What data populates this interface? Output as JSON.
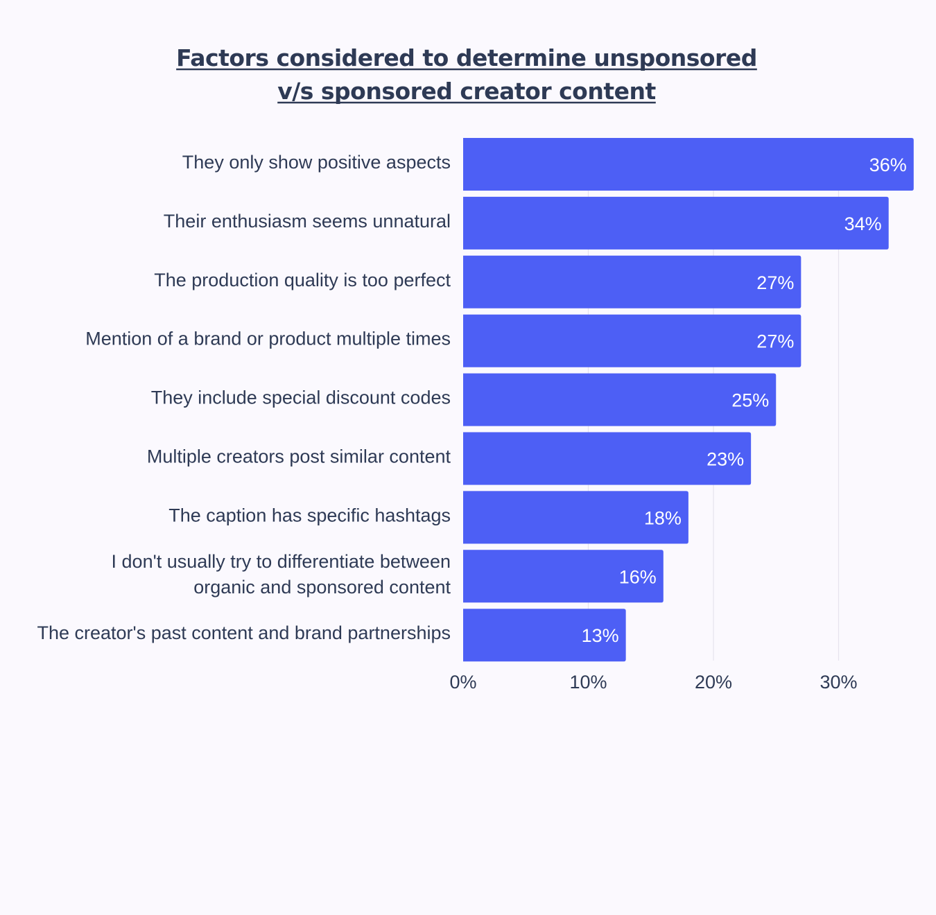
{
  "chart_data": {
    "type": "bar",
    "orientation": "horizontal",
    "title_lines": [
      "Factors considered to determine unsponsored",
      "v/s sponsored creator content"
    ],
    "categories": [
      [
        "They only show positive aspects"
      ],
      [
        "Their enthusiasm seems unnatural"
      ],
      [
        "The production quality is too perfect"
      ],
      [
        "Mention of a brand or product multiple times"
      ],
      [
        "They include special discount codes"
      ],
      [
        "Multiple creators post similar content"
      ],
      [
        "The caption has specific hashtags"
      ],
      [
        "I don't usually try to differentiate between",
        "organic and sponsored content"
      ],
      [
        "The creator's past content and brand partnerships"
      ]
    ],
    "values": [
      36,
      34,
      27,
      27,
      25,
      23,
      18,
      16,
      13
    ],
    "value_labels": [
      "36%",
      "34%",
      "27%",
      "27%",
      "25%",
      "23%",
      "18%",
      "16%",
      "13%"
    ],
    "x_ticks": [
      0,
      10,
      20,
      30
    ],
    "x_tick_labels": [
      "0%",
      "10%",
      "20%",
      "30%"
    ],
    "xlim": [
      0,
      36
    ],
    "xlabel": "",
    "ylabel": "",
    "grid": "vertical",
    "legend": "none",
    "colors": {
      "bar": "#4d5ff5",
      "text": "#2e3a55",
      "grid": "#e6e3ee",
      "background": "#fbf9fe",
      "value_text": "#ffffff"
    }
  }
}
